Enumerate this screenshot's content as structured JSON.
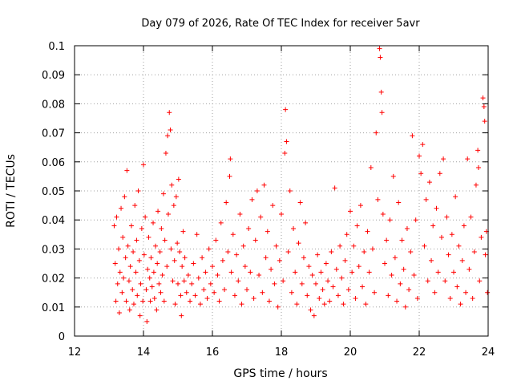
{
  "chart_data": {
    "type": "scatter",
    "title": "Day 079 of 2026, Rate Of TEC Index for receiver 5avr",
    "xlabel": "GPS time / hours",
    "ylabel": "ROTI / TECUs",
    "xlim": [
      12,
      24
    ],
    "ylim": [
      0,
      0.1
    ],
    "xticks": [
      "12",
      "14",
      "16",
      "18",
      "20",
      "22",
      "24"
    ],
    "yticks": [
      "0",
      "0.01",
      "0.02",
      "0.03",
      "0.04",
      "0.05",
      "0.06",
      "0.07",
      "0.08",
      "0.09",
      "0.1"
    ],
    "grid": true,
    "marker": "+",
    "color": "#ff0000",
    "series": [
      {
        "points": [
          [
            13.15,
            0.038
          ],
          [
            13.18,
            0.025
          ],
          [
            13.2,
            0.012
          ],
          [
            13.22,
            0.041
          ],
          [
            13.25,
            0.018
          ],
          [
            13.28,
            0.03
          ],
          [
            13.3,
            0.008
          ],
          [
            13.32,
            0.022
          ],
          [
            13.35,
            0.044
          ],
          [
            13.38,
            0.015
          ],
          [
            13.4,
            0.034
          ],
          [
            13.42,
            0.02
          ],
          [
            13.45,
            0.048
          ],
          [
            13.48,
            0.027
          ],
          [
            13.5,
            0.012
          ],
          [
            13.52,
            0.057
          ],
          [
            13.55,
            0.031
          ],
          [
            13.58,
            0.019
          ],
          [
            13.6,
            0.009
          ],
          [
            13.62,
            0.024
          ],
          [
            13.65,
            0.038
          ],
          [
            13.68,
            0.016
          ],
          [
            13.7,
            0.029
          ],
          [
            13.72,
            0.011
          ],
          [
            13.75,
            0.045
          ],
          [
            13.78,
            0.022
          ],
          [
            13.8,
            0.033
          ],
          [
            13.82,
            0.014
          ],
          [
            13.85,
            0.05
          ],
          [
            13.88,
            0.026
          ],
          [
            13.9,
            0.007
          ],
          [
            13.92,
            0.018
          ],
          [
            13.95,
            0.037
          ],
          [
            13.98,
            0.012
          ],
          [
            14.0,
            0.059
          ],
          [
            14.02,
            0.028
          ],
          [
            14.05,
            0.041
          ],
          [
            14.08,
            0.016
          ],
          [
            14.1,
            0.005
          ],
          [
            14.12,
            0.023
          ],
          [
            14.15,
            0.034
          ],
          [
            14.18,
            0.02
          ],
          [
            14.2,
            0.012
          ],
          [
            14.22,
            0.027
          ],
          [
            14.25,
            0.017
          ],
          [
            14.28,
            0.039
          ],
          [
            14.3,
            0.022
          ],
          [
            14.32,
            0.013
          ],
          [
            14.35,
            0.031
          ],
          [
            14.38,
            0.009
          ],
          [
            14.4,
            0.025
          ],
          [
            14.42,
            0.043
          ],
          [
            14.45,
            0.018
          ],
          [
            14.48,
            0.029
          ],
          [
            14.5,
            0.015
          ],
          [
            14.52,
            0.037
          ],
          [
            14.55,
            0.021
          ],
          [
            14.58,
            0.049
          ],
          [
            14.6,
            0.012
          ],
          [
            14.62,
            0.033
          ],
          [
            14.65,
            0.063
          ],
          [
            14.68,
            0.024
          ],
          [
            14.7,
            0.069
          ],
          [
            14.72,
            0.042
          ],
          [
            14.75,
            0.077
          ],
          [
            14.78,
            0.071
          ],
          [
            14.8,
            0.03
          ],
          [
            14.82,
            0.052
          ],
          [
            14.85,
            0.019
          ],
          [
            14.88,
            0.045
          ],
          [
            14.9,
            0.026
          ],
          [
            14.92,
            0.011
          ],
          [
            14.95,
            0.048
          ],
          [
            14.98,
            0.032
          ],
          [
            15.0,
            0.018
          ],
          [
            15.02,
            0.054
          ],
          [
            15.05,
            0.029
          ],
          [
            15.08,
            0.014
          ],
          [
            15.1,
            0.007
          ],
          [
            15.12,
            0.024
          ],
          [
            15.15,
            0.036
          ],
          [
            15.18,
            0.019
          ],
          [
            15.2,
            0.027
          ],
          [
            15.25,
            0.015
          ],
          [
            15.3,
            0.021
          ],
          [
            15.35,
            0.012
          ],
          [
            15.4,
            0.018
          ],
          [
            15.45,
            0.025
          ],
          [
            15.5,
            0.014
          ],
          [
            15.55,
            0.035
          ],
          [
            15.6,
            0.02
          ],
          [
            15.65,
            0.011
          ],
          [
            15.7,
            0.027
          ],
          [
            15.75,
            0.016
          ],
          [
            15.8,
            0.022
          ],
          [
            15.85,
            0.013
          ],
          [
            15.9,
            0.03
          ],
          [
            15.95,
            0.018
          ],
          [
            16.0,
            0.024
          ],
          [
            16.05,
            0.015
          ],
          [
            16.1,
            0.033
          ],
          [
            16.15,
            0.021
          ],
          [
            16.2,
            0.012
          ],
          [
            16.25,
            0.039
          ],
          [
            16.3,
            0.026
          ],
          [
            16.35,
            0.016
          ],
          [
            16.4,
            0.046
          ],
          [
            16.45,
            0.029
          ],
          [
            16.5,
            0.055
          ],
          [
            16.52,
            0.061
          ],
          [
            16.55,
            0.022
          ],
          [
            16.6,
            0.035
          ],
          [
            16.65,
            0.014
          ],
          [
            16.7,
            0.028
          ],
          [
            16.75,
            0.019
          ],
          [
            16.8,
            0.042
          ],
          [
            16.85,
            0.011
          ],
          [
            16.9,
            0.031
          ],
          [
            16.95,
            0.024
          ],
          [
            17.0,
            0.016
          ],
          [
            17.05,
            0.037
          ],
          [
            17.1,
            0.022
          ],
          [
            17.15,
            0.047
          ],
          [
            17.2,
            0.013
          ],
          [
            17.25,
            0.033
          ],
          [
            17.3,
            0.05
          ],
          [
            17.35,
            0.021
          ],
          [
            17.4,
            0.041
          ],
          [
            17.45,
            0.015
          ],
          [
            17.5,
            0.052
          ],
          [
            17.55,
            0.027
          ],
          [
            17.6,
            0.036
          ],
          [
            17.65,
            0.012
          ],
          [
            17.7,
            0.023
          ],
          [
            17.75,
            0.045
          ],
          [
            17.8,
            0.018
          ],
          [
            17.85,
            0.031
          ],
          [
            17.9,
            0.01
          ],
          [
            17.95,
            0.026
          ],
          [
            18.0,
            0.042
          ],
          [
            18.05,
            0.019
          ],
          [
            18.1,
            0.063
          ],
          [
            18.12,
            0.078
          ],
          [
            18.15,
            0.067
          ],
          [
            18.2,
            0.029
          ],
          [
            18.25,
            0.05
          ],
          [
            18.3,
            0.015
          ],
          [
            18.35,
            0.037
          ],
          [
            18.4,
            0.022
          ],
          [
            18.45,
            0.011
          ],
          [
            18.5,
            0.032
          ],
          [
            18.55,
            0.046
          ],
          [
            18.6,
            0.018
          ],
          [
            18.65,
            0.027
          ],
          [
            18.7,
            0.039
          ],
          [
            18.75,
            0.014
          ],
          [
            18.8,
            0.024
          ],
          [
            18.85,
            0.009
          ],
          [
            18.9,
            0.021
          ],
          [
            18.95,
            0.007
          ],
          [
            19.0,
            0.018
          ],
          [
            19.05,
            0.028
          ],
          [
            19.1,
            0.013
          ],
          [
            19.15,
            0.022
          ],
          [
            19.2,
            0.016
          ],
          [
            19.25,
            0.011
          ],
          [
            19.3,
            0.025
          ],
          [
            19.35,
            0.019
          ],
          [
            19.4,
            0.012
          ],
          [
            19.45,
            0.029
          ],
          [
            19.5,
            0.017
          ],
          [
            19.55,
            0.051
          ],
          [
            19.6,
            0.023
          ],
          [
            19.65,
            0.014
          ],
          [
            19.7,
            0.031
          ],
          [
            19.75,
            0.02
          ],
          [
            19.8,
            0.011
          ],
          [
            19.85,
            0.026
          ],
          [
            19.9,
            0.035
          ],
          [
            19.95,
            0.016
          ],
          [
            20.0,
            0.043
          ],
          [
            20.05,
            0.022
          ],
          [
            20.1,
            0.031
          ],
          [
            20.15,
            0.013
          ],
          [
            20.2,
            0.038
          ],
          [
            20.25,
            0.024
          ],
          [
            20.3,
            0.045
          ],
          [
            20.35,
            0.017
          ],
          [
            20.4,
            0.029
          ],
          [
            20.45,
            0.011
          ],
          [
            20.5,
            0.036
          ],
          [
            20.55,
            0.022
          ],
          [
            20.6,
            0.058
          ],
          [
            20.65,
            0.03
          ],
          [
            20.7,
            0.015
          ],
          [
            20.75,
            0.07
          ],
          [
            20.8,
            0.047
          ],
          [
            20.85,
            0.099
          ],
          [
            20.87,
            0.096
          ],
          [
            20.9,
            0.084
          ],
          [
            20.92,
            0.077
          ],
          [
            20.95,
            0.042
          ],
          [
            21.0,
            0.025
          ],
          [
            21.05,
            0.033
          ],
          [
            21.1,
            0.014
          ],
          [
            21.15,
            0.04
          ],
          [
            21.2,
            0.021
          ],
          [
            21.25,
            0.055
          ],
          [
            21.3,
            0.027
          ],
          [
            21.35,
            0.012
          ],
          [
            21.4,
            0.046
          ],
          [
            21.45,
            0.018
          ],
          [
            21.5,
            0.033
          ],
          [
            21.55,
            0.023
          ],
          [
            21.6,
            0.01
          ],
          [
            21.65,
            0.037
          ],
          [
            21.7,
            0.016
          ],
          [
            21.75,
            0.029
          ],
          [
            21.8,
            0.069
          ],
          [
            21.85,
            0.021
          ],
          [
            21.9,
            0.04
          ],
          [
            21.95,
            0.013
          ],
          [
            22.0,
            0.062
          ],
          [
            22.05,
            0.056
          ],
          [
            22.1,
            0.066
          ],
          [
            22.15,
            0.031
          ],
          [
            22.2,
            0.047
          ],
          [
            22.25,
            0.019
          ],
          [
            22.3,
            0.053
          ],
          [
            22.35,
            0.026
          ],
          [
            22.4,
            0.038
          ],
          [
            22.45,
            0.015
          ],
          [
            22.5,
            0.044
          ],
          [
            22.55,
            0.022
          ],
          [
            22.6,
            0.056
          ],
          [
            22.65,
            0.034
          ],
          [
            22.7,
            0.061
          ],
          [
            22.75,
            0.019
          ],
          [
            22.8,
            0.041
          ],
          [
            22.85,
            0.028
          ],
          [
            22.9,
            0.013
          ],
          [
            22.95,
            0.035
          ],
          [
            23.0,
            0.022
          ],
          [
            23.05,
            0.048
          ],
          [
            23.1,
            0.017
          ],
          [
            23.15,
            0.031
          ],
          [
            23.2,
            0.011
          ],
          [
            23.25,
            0.026
          ],
          [
            23.3,
            0.038
          ],
          [
            23.35,
            0.015
          ],
          [
            23.4,
            0.061
          ],
          [
            23.45,
            0.023
          ],
          [
            23.5,
            0.041
          ],
          [
            23.55,
            0.013
          ],
          [
            23.6,
            0.029
          ],
          [
            23.65,
            0.052
          ],
          [
            23.7,
            0.064
          ],
          [
            23.72,
            0.058
          ],
          [
            23.75,
            0.019
          ],
          [
            23.8,
            0.034
          ],
          [
            23.85,
            0.082
          ],
          [
            23.88,
            0.079
          ],
          [
            23.9,
            0.074
          ],
          [
            23.92,
            0.028
          ],
          [
            23.95,
            0.036
          ],
          [
            23.98,
            0.015
          ]
        ]
      }
    ]
  }
}
